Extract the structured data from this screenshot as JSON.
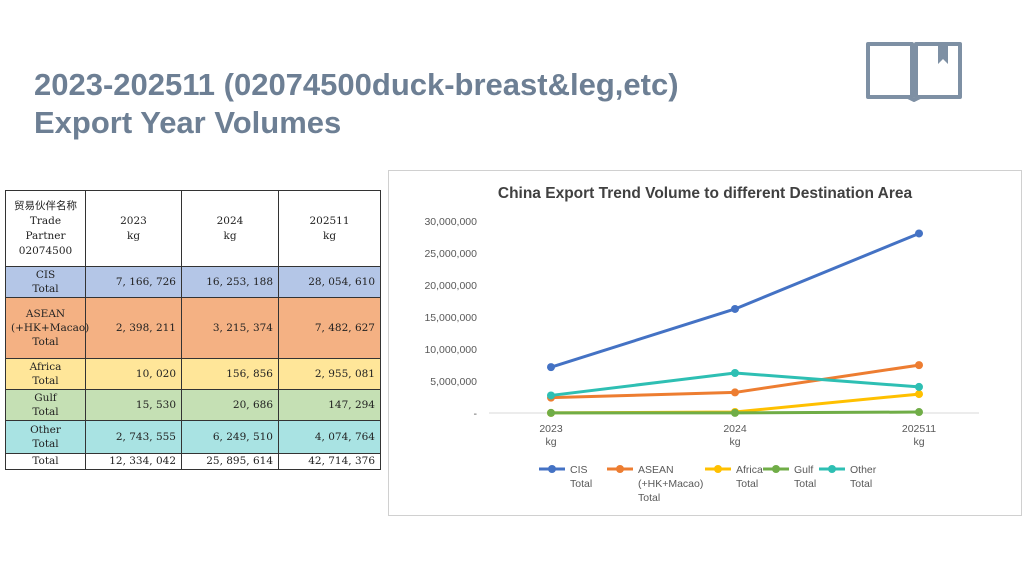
{
  "slide": {
    "title_line1": "2023-202511 (02074500duck-breast&leg,etc)",
    "title_line2": "Export  Year Volumes"
  },
  "icons": {
    "book": "book-with-bookmark-icon"
  },
  "table": {
    "header": {
      "partner": [
        "贸易伙伴名称",
        "Trade",
        "Partner",
        "02074500"
      ],
      "col2023": [
        "2023",
        "kg"
      ],
      "col2024": [
        "2024",
        "kg"
      ],
      "col202511": [
        "202511",
        "kg"
      ]
    },
    "rows": [
      {
        "name": [
          "CIS",
          "Total"
        ],
        "v2023": "7, 166, 726",
        "v2024": "16, 253, 188",
        "v202511": "28, 054, 610"
      },
      {
        "name": [
          "ASEAN",
          "(+HK+Macao)",
          "Total"
        ],
        "v2023": "2, 398, 211",
        "v2024": "3, 215, 374",
        "v202511": "7, 482, 627"
      },
      {
        "name": [
          "Africa",
          "Total"
        ],
        "v2023": "10, 020",
        "v2024": "156, 856",
        "v202511": "2, 955, 081"
      },
      {
        "name": [
          "Gulf",
          "Total"
        ],
        "v2023": "15, 530",
        "v2024": "20, 686",
        "v202511": "147, 294"
      },
      {
        "name": [
          "Other",
          "Total"
        ],
        "v2023": "2, 743, 555",
        "v2024": "6, 249, 510",
        "v202511": "4, 074, 764"
      },
      {
        "name": [
          "Total"
        ],
        "v2023": "12, 334, 042",
        "v2024": "25, 895, 614",
        "v202511": "42, 714, 376"
      }
    ]
  },
  "chart_data": {
    "type": "line",
    "title": "China Export Trend Volume to different Destination Area",
    "categories": [
      [
        "2023",
        "kg"
      ],
      [
        "2024",
        "kg"
      ],
      [
        "202511",
        "kg"
      ]
    ],
    "y_ticks": [
      "-",
      "5,000,000",
      "10,000,000",
      "15,000,000",
      "20,000,000",
      "25,000,000",
      "30,000,000"
    ],
    "ylim": [
      0,
      30000000
    ],
    "grid": false,
    "legend_position": "bottom",
    "series": [
      {
        "name": [
          "CIS",
          "Total"
        ],
        "color": "#4472c4",
        "values": [
          7166726,
          16253188,
          28054610
        ]
      },
      {
        "name": [
          "ASEAN",
          "(+HK+Macao)",
          "Total"
        ],
        "color": "#ed7d31",
        "values": [
          2398211,
          3215374,
          7482627
        ]
      },
      {
        "name": [
          "Africa",
          "Total"
        ],
        "color": "#ffc000",
        "values": [
          10020,
          156856,
          2955081
        ]
      },
      {
        "name": [
          "Gulf",
          "Total"
        ],
        "color": "#70ad47",
        "values": [
          15530,
          20686,
          147294
        ]
      },
      {
        "name": [
          "Other",
          "Total"
        ],
        "color": "#2ebfb3",
        "values": [
          2743555,
          6249510,
          4074764
        ]
      }
    ]
  }
}
